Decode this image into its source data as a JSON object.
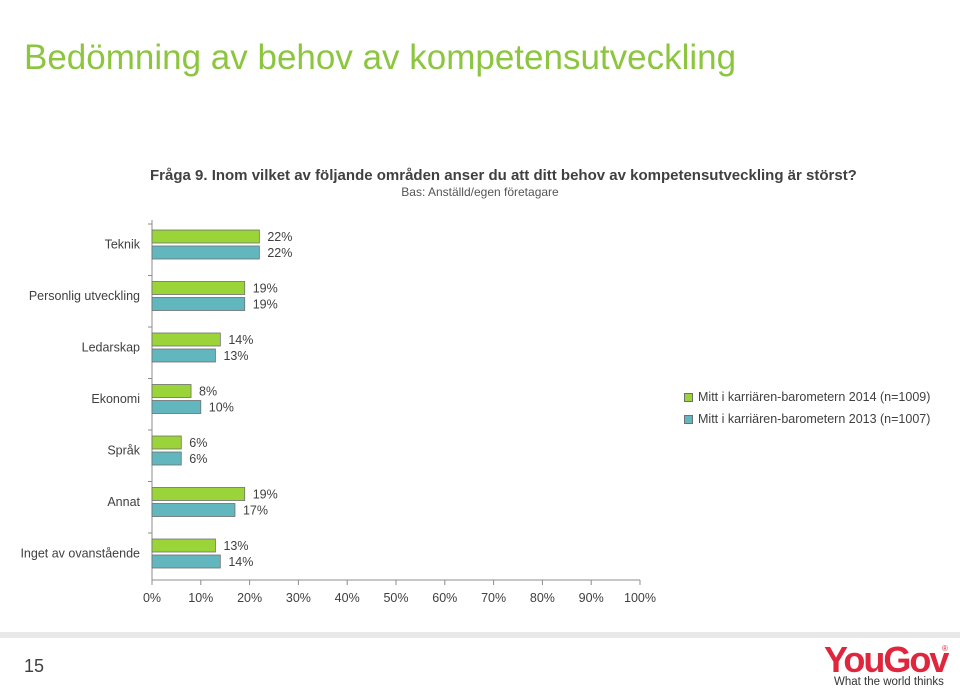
{
  "page": {
    "title": "Bedömning av behov av kompetensutveckling",
    "question": "Fråga 9. Inom vilket av följande områden anser du att ditt behov av kompetensutveckling är störst?",
    "base": "Bas: Anställd/egen företagare",
    "page_number": "15"
  },
  "logo": {
    "wordmark": "YouGov",
    "registered": "®",
    "tagline": "What the world thinks"
  },
  "chart_data": {
    "type": "bar",
    "orientation": "horizontal",
    "categories": [
      "Teknik",
      "Personlig utveckling",
      "Ledarskap",
      "Ekonomi",
      "Språk",
      "Annat",
      "Inget av ovanstående"
    ],
    "series": [
      {
        "name": "Mitt i karriären-barometern 2014 (n=1009)",
        "color": "#9bd438",
        "values": [
          22,
          19,
          14,
          8,
          6,
          19,
          13
        ],
        "labels": [
          "22%",
          "19%",
          "14%",
          "8%",
          "6%",
          "19%",
          "13%"
        ]
      },
      {
        "name": "Mitt i karriären-barometern 2013 (n=1007)",
        "color": "#62b7bf",
        "values": [
          22,
          19,
          13,
          10,
          6,
          17,
          14
        ],
        "labels": [
          "22%",
          "19%",
          "13%",
          "10%",
          "6%",
          "17%",
          "14%"
        ]
      }
    ],
    "x_ticks": [
      "0%",
      "10%",
      "20%",
      "30%",
      "40%",
      "50%",
      "60%",
      "70%",
      "80%",
      "90%",
      "100%"
    ],
    "xlim": [
      0,
      100
    ],
    "grid": false,
    "legend_position": "right"
  }
}
